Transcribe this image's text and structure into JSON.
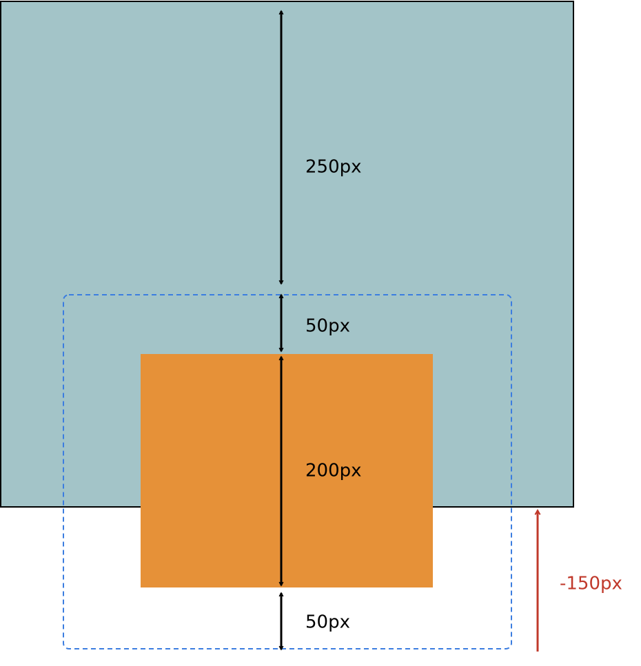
{
  "measurements": [
    {
      "label": "250px"
    },
    {
      "label": "50px"
    },
    {
      "label": "200px"
    },
    {
      "label": "50px"
    }
  ],
  "offset": {
    "label": "-150px"
  }
}
